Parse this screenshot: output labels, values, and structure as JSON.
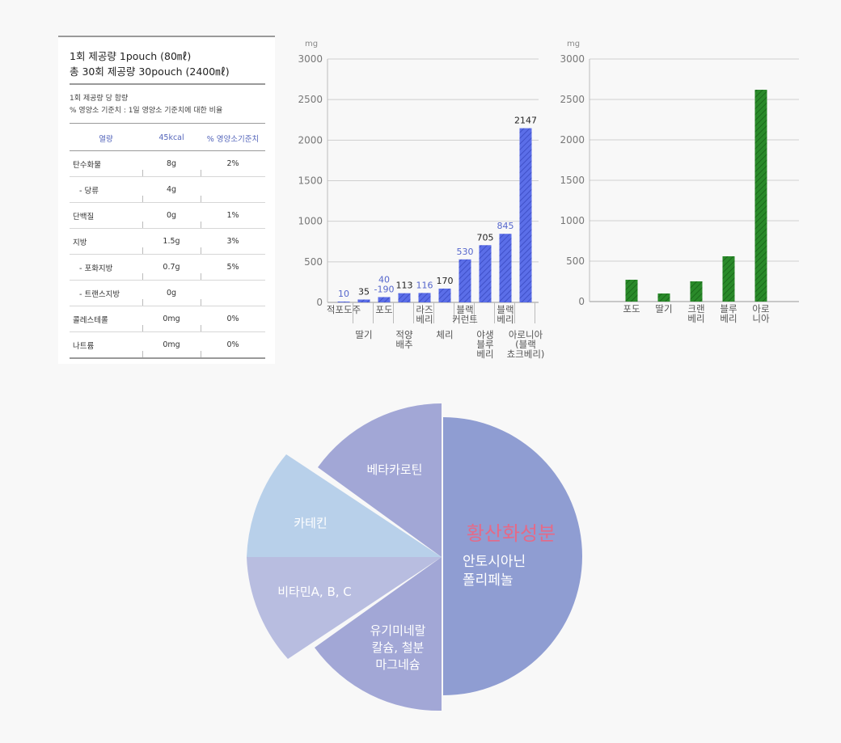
{
  "nutrition": {
    "line1": "1회 제공량 1pouch (80㎖)",
    "line2": "총 30회 제공량 30pouch (2400㎖)",
    "subtitle": "1회 제공량 당 함량",
    "note": "% 영양소 기준치 : 1일 영양소 기준치에 대한 비율",
    "header": [
      "열량",
      "45kcal",
      "% 영양소기준치"
    ],
    "rows": [
      [
        "탄수화물",
        "8g",
        "2%"
      ],
      [
        "- 당류",
        "4g",
        ""
      ],
      [
        "단백질",
        "0g",
        "1%"
      ],
      [
        "지방",
        "1.5g",
        "3%"
      ],
      [
        "- 포화지방",
        "0.7g",
        "5%"
      ],
      [
        "- 트랜스지방",
        "0g",
        ""
      ],
      [
        "콜레스테롤",
        "0mg",
        "0%"
      ],
      [
        "나트륨",
        "0mg",
        "0%"
      ]
    ]
  },
  "chart_data": [
    {
      "type": "bar",
      "unit": "mg",
      "ylim": [
        0,
        3000
      ],
      "yticks": [
        0,
        500,
        1000,
        1500,
        2000,
        2500,
        3000
      ],
      "grid": true,
      "color": "#5b6ee8",
      "categories": [
        "적포도주",
        "딸기",
        "포도",
        "적양배추",
        "라즈베리",
        "체리",
        "블랙커런트",
        "야생블루베리",
        "블랙베리",
        "아로니아(블랙쵸크베리)"
      ],
      "category_label_lines": [
        [
          "적포도주"
        ],
        [
          "딸기"
        ],
        [
          "포도"
        ],
        [
          "적양",
          "배추"
        ],
        [
          "라즈",
          "베리"
        ],
        [
          "체리"
        ],
        [
          "블랙",
          "커런트"
        ],
        [
          "야생",
          "블루",
          "베리"
        ],
        [
          "블랙",
          "베리"
        ],
        [
          "아로니아",
          "(블랙",
          "쵸크베리)"
        ]
      ],
      "values": [
        10,
        35,
        65,
        113,
        116,
        170,
        530,
        705,
        845,
        2147
      ],
      "value_labels": [
        "10",
        "35",
        "40\n-190",
        "113",
        "116",
        "170",
        "530",
        "705",
        "845",
        "2147"
      ],
      "label_colors": [
        "#5566cc",
        "#222222",
        "#5566cc",
        "#222222",
        "#5566cc",
        "#222222",
        "#5566cc",
        "#222222",
        "#5566cc",
        "#222222"
      ]
    },
    {
      "type": "bar",
      "unit": "mg",
      "ylim": [
        0,
        3000
      ],
      "yticks": [
        0,
        500,
        1000,
        1500,
        2000,
        2500,
        3000
      ],
      "grid": true,
      "color": "#2a8a2a",
      "categories": [
        "포도",
        "딸기",
        "크랜베리",
        "블루베리",
        "아로니아"
      ],
      "category_label_lines": [
        [
          "포도"
        ],
        [
          "딸기"
        ],
        [
          "크랜",
          "베리"
        ],
        [
          "블루",
          "베리"
        ],
        [
          "아로",
          "니아"
        ]
      ],
      "values": [
        270,
        100,
        250,
        560,
        2620
      ]
    },
    {
      "type": "pie",
      "slices": [
        {
          "label": "베타카로틴",
          "color": "#a2a7d6"
        },
        {
          "label": "카테킨",
          "color": "#b8d0ea"
        },
        {
          "label": "비타민A, B, C",
          "color": "#b8bde0"
        },
        {
          "label": "유기미네랄\n칼슘, 철분\n마그네슘",
          "color": "#a2a7d6"
        },
        {
          "label": "황산화성분",
          "sublabel": "안토시아닌\n폴리페놀",
          "color": "#8f9dd2",
          "title_color": "#e46a88"
        }
      ]
    }
  ]
}
